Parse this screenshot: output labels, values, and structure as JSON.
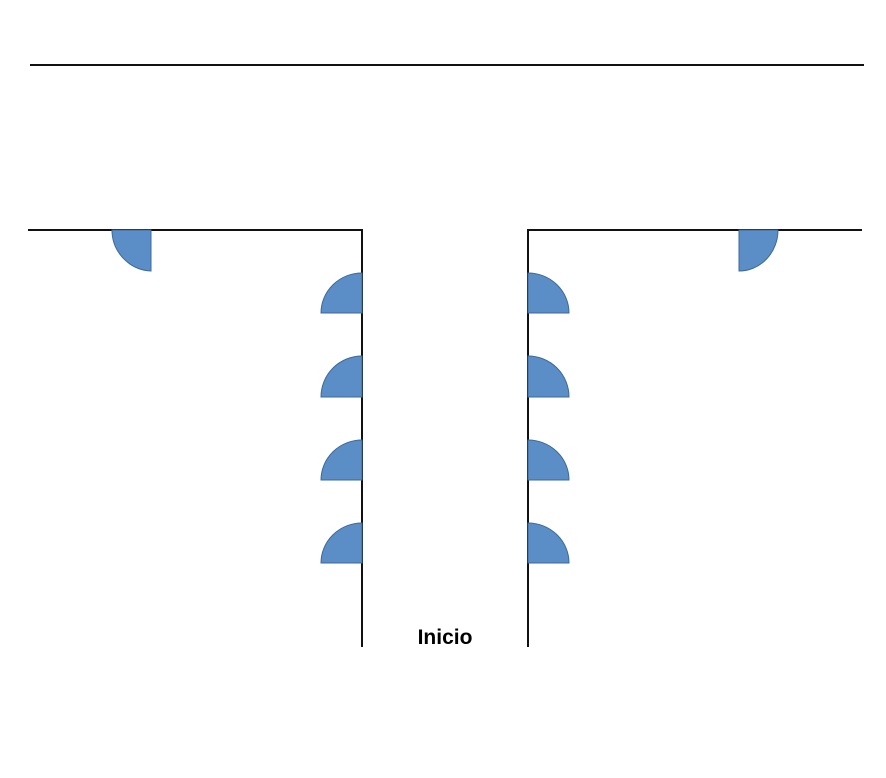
{
  "diagram": {
    "start_label": "Inicio",
    "colors": {
      "wall": "#111111",
      "door_fill": "#5b8ec6",
      "door_stroke": "#3d6a98",
      "background": "#ffffff"
    },
    "doors": {
      "top_left": "quarter-circle-door",
      "left_corridor": [
        "quarter-circle-door",
        "quarter-circle-door",
        "quarter-circle-door",
        "quarter-circle-door"
      ],
      "right_corridor": [
        "quarter-circle-door",
        "quarter-circle-door",
        "quarter-circle-door",
        "quarter-circle-door"
      ],
      "top_right": "quarter-circle-door"
    }
  }
}
